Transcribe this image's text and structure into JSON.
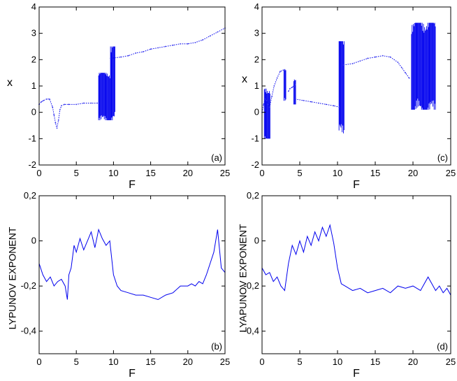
{
  "colors": {
    "series": "#0000ee",
    "axis": "#000000",
    "background": "#ffffff"
  },
  "chart_data": [
    {
      "id": "a",
      "type": "scatter",
      "panel_label": "(a)",
      "xlabel": "F",
      "ylabel": "x",
      "xlim": [
        0,
        25
      ],
      "ylim": [
        -2,
        4
      ],
      "xticks": [
        0,
        5,
        10,
        15,
        20,
        25
      ],
      "yticks": [
        -2,
        -1,
        0,
        1,
        2,
        3,
        4
      ],
      "ytick_labels": [
        "-2",
        "-1",
        "0",
        "1",
        "2",
        "3",
        "4"
      ],
      "series": [
        {
          "name": "x(F)",
          "kind": "line",
          "x": [
            0,
            0.3,
            0.6,
            1.0,
            1.4,
            1.8,
            2.0,
            2.2,
            2.4,
            2.6,
            2.8,
            3.0,
            3.4,
            4.0,
            5.0,
            6.0,
            7.0,
            7.8
          ],
          "y": [
            0.3,
            0.4,
            0.45,
            0.5,
            0.5,
            0.2,
            -0.1,
            -0.4,
            -0.6,
            -0.3,
            0.1,
            0.25,
            0.3,
            0.3,
            0.3,
            0.35,
            0.35,
            0.35
          ]
        },
        {
          "name": "x(F) high branch",
          "kind": "line",
          "x": [
            9.6,
            11,
            12,
            13,
            14,
            15,
            16,
            17,
            18,
            19,
            20,
            21,
            22,
            23,
            24,
            25
          ],
          "y": [
            2.05,
            2.1,
            2.15,
            2.25,
            2.3,
            2.4,
            2.45,
            2.5,
            2.55,
            2.6,
            2.6,
            2.65,
            2.75,
            2.9,
            3.05,
            3.2
          ]
        }
      ],
      "chaotic_bands": [
        {
          "f_start": 8.0,
          "f_end": 9.6,
          "y_min": -0.3,
          "y_max": 1.5
        },
        {
          "f_start": 9.6,
          "f_end": 10.2,
          "y_min": -0.3,
          "y_max": 2.5
        }
      ]
    },
    {
      "id": "c",
      "type": "scatter",
      "panel_label": "(c)",
      "xlabel": "F",
      "ylabel": "x",
      "xlim": [
        0,
        25
      ],
      "ylim": [
        -2,
        4
      ],
      "xticks": [
        0,
        5,
        10,
        15,
        20,
        25
      ],
      "yticks": [
        -2,
        -1,
        0,
        1,
        2,
        3,
        4
      ],
      "ytick_labels": [
        "-2",
        "-1",
        "0",
        "1",
        "2",
        "3",
        "4"
      ],
      "series": [
        {
          "name": "x(F) low branch",
          "kind": "line",
          "x": [
            0,
            0.2,
            0.4,
            0.6,
            0.8,
            1.0,
            1.3,
            1.6,
            2.0,
            2.4,
            2.8,
            3.0
          ],
          "y": [
            0.0,
            0.3,
            0.5,
            0.45,
            0.3,
            0.2,
            0.6,
            1.0,
            1.3,
            1.55,
            1.6,
            1.62
          ]
        },
        {
          "name": "x(F) window",
          "kind": "line",
          "x": [
            3.5,
            3.7,
            4.0,
            4.2,
            4.4
          ],
          "y": [
            0.8,
            0.9,
            0.95,
            1.0,
            1.05
          ]
        },
        {
          "name": "x(F) middle",
          "kind": "line",
          "x": [
            4.4,
            5.5,
            6.5,
            7.5,
            8.5,
            9.5,
            10.2
          ],
          "y": [
            0.5,
            0.45,
            0.4,
            0.35,
            0.3,
            0.25,
            0.2
          ]
        },
        {
          "name": "x(F) upper",
          "kind": "line",
          "x": [
            10.8,
            12,
            13,
            14,
            15,
            16,
            17,
            18,
            18.5,
            19,
            19.5
          ],
          "y": [
            1.8,
            1.85,
            1.95,
            2.05,
            2.1,
            2.15,
            2.1,
            1.9,
            1.7,
            1.5,
            1.3
          ]
        }
      ],
      "chaotic_bands": [
        {
          "f_start": 0.3,
          "f_end": 1.1,
          "y_min": -1.0,
          "y_max": 0.9
        },
        {
          "f_start": 2.9,
          "f_end": 3.2,
          "y_min": 0.4,
          "y_max": 1.6
        },
        {
          "f_start": 4.2,
          "f_end": 4.5,
          "y_min": 0.3,
          "y_max": 1.3
        },
        {
          "f_start": 10.2,
          "f_end": 10.9,
          "y_min": -0.8,
          "y_max": 2.7
        },
        {
          "f_start": 19.8,
          "f_end": 23.0,
          "y_min": 0.1,
          "y_max": 3.4
        }
      ]
    },
    {
      "id": "b",
      "type": "line",
      "panel_label": "(b)",
      "xlabel": "F",
      "ylabel": "LYPUNOV EXPONENT",
      "xlim": [
        0,
        25
      ],
      "ylim": [
        -0.5,
        0.2
      ],
      "xticks": [
        0,
        5,
        10,
        15,
        20,
        25
      ],
      "yticks": [
        -0.4,
        -0.2,
        0,
        0.2
      ],
      "ytick_labels": [
        "-0,4",
        "-0,2",
        "0",
        "0,2"
      ],
      "series": [
        {
          "name": "lambda(F)",
          "x": [
            0,
            0.5,
            1.0,
            1.5,
            2.0,
            2.5,
            3.0,
            3.5,
            3.8,
            4.0,
            4.3,
            4.7,
            5.0,
            5.5,
            6.0,
            6.5,
            7.0,
            7.5,
            8.0,
            8.5,
            9.0,
            9.5,
            10.0,
            10.5,
            11,
            12,
            13,
            14,
            15,
            16,
            17,
            18,
            19,
            20,
            20.5,
            21,
            21.5,
            22,
            22.5,
            23,
            23.5,
            24,
            24.5,
            25
          ],
          "y": [
            -0.1,
            -0.15,
            -0.18,
            -0.16,
            -0.2,
            -0.18,
            -0.17,
            -0.2,
            -0.26,
            -0.15,
            -0.12,
            -0.02,
            -0.05,
            0.01,
            -0.04,
            0.0,
            0.04,
            -0.03,
            0.05,
            0.01,
            -0.02,
            0.0,
            -0.15,
            -0.2,
            -0.22,
            -0.23,
            -0.24,
            -0.24,
            -0.25,
            -0.26,
            -0.24,
            -0.23,
            -0.2,
            -0.2,
            -0.19,
            -0.2,
            -0.18,
            -0.19,
            -0.15,
            -0.1,
            -0.05,
            0.05,
            -0.12,
            -0.14
          ]
        }
      ]
    },
    {
      "id": "d",
      "type": "line",
      "panel_label": "(d)",
      "xlabel": "F",
      "ylabel": "LYAPUNOV EXPONENT",
      "xlim": [
        0,
        25
      ],
      "ylim": [
        -0.5,
        0.2
      ],
      "xticks": [
        0,
        5,
        10,
        15,
        20,
        25
      ],
      "yticks": [
        -0.4,
        -0.2,
        0,
        0.2
      ],
      "ytick_labels": [
        "-0,4",
        "-0,2",
        "0",
        "0,2"
      ],
      "series": [
        {
          "name": "lambda(F)",
          "x": [
            0,
            0.5,
            1.0,
            1.5,
            2.0,
            2.5,
            3.0,
            3.5,
            4.0,
            4.5,
            5.0,
            5.5,
            6.0,
            6.5,
            7.0,
            7.5,
            8.0,
            8.5,
            9.0,
            9.5,
            10.0,
            10.5,
            11,
            12,
            13,
            14,
            15,
            16,
            17,
            18,
            19,
            20,
            21,
            21.5,
            22,
            22.5,
            23,
            23.5,
            24,
            24.5,
            25
          ],
          "y": [
            -0.12,
            -0.15,
            -0.14,
            -0.18,
            -0.16,
            -0.2,
            -0.22,
            -0.1,
            -0.02,
            -0.06,
            0.0,
            -0.05,
            0.02,
            -0.02,
            0.04,
            0.0,
            0.06,
            0.02,
            0.07,
            -0.01,
            -0.12,
            -0.19,
            -0.2,
            -0.22,
            -0.21,
            -0.23,
            -0.22,
            -0.21,
            -0.23,
            -0.2,
            -0.21,
            -0.2,
            -0.22,
            -0.19,
            -0.16,
            -0.19,
            -0.22,
            -0.2,
            -0.23,
            -0.21,
            -0.24
          ]
        }
      ]
    }
  ]
}
